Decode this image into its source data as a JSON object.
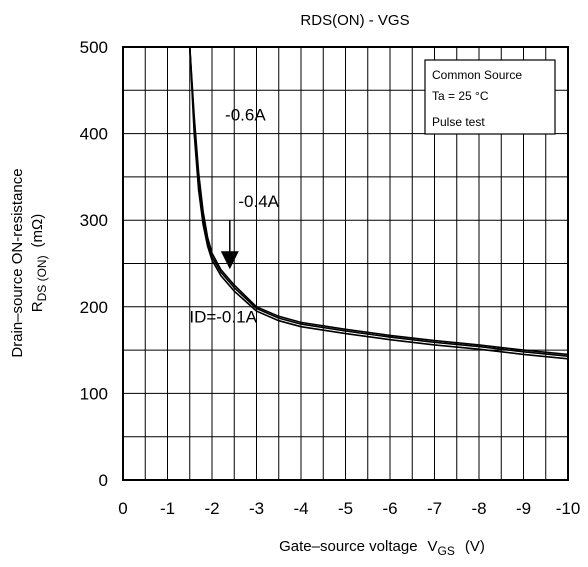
{
  "chart_data": {
    "type": "line",
    "title": "RDS(ON) - VGS",
    "xlabel": {
      "main": "Gate–source voltage",
      "symbol": "V",
      "sub": "GS",
      "unit": "(V)"
    },
    "ylabel": {
      "line1": "Drain–source ON-resistance",
      "symbol": "R",
      "sub": "DS (ON)",
      "unit": "(mΩ)"
    },
    "xlim": [
      0,
      -10
    ],
    "ylim": [
      0,
      500
    ],
    "x_ticks": [
      "0",
      "-1",
      "-2",
      "-3",
      "-4",
      "-5",
      "-6",
      "-7",
      "-8",
      "-9",
      "-10"
    ],
    "y_ticks": [
      "0",
      "100",
      "200",
      "300",
      "400",
      "500"
    ],
    "grid": true,
    "legend_box": {
      "line1": "Common Source",
      "line2": "Ta = 25 °C",
      "line3": "Pulse test"
    },
    "series": [
      {
        "name": "-0.6A",
        "x": [
          -1.5,
          -1.6,
          -1.7,
          -1.8,
          -1.9,
          -2.0,
          -2.2,
          -2.5,
          -3.0,
          -3.5,
          -4.0,
          -5.0,
          -6.0,
          -7.0,
          -8.0,
          -9.0,
          -10.0
        ],
        "y": [
          500,
          420,
          355,
          310,
          280,
          262,
          243,
          225,
          200,
          189,
          182,
          174,
          167,
          161,
          156,
          150,
          145
        ]
      },
      {
        "name": "-0.4A",
        "x": [
          -1.5,
          -1.6,
          -1.7,
          -1.8,
          -1.9,
          -2.0,
          -2.2,
          -2.5,
          -3.0,
          -3.5,
          -4.0,
          -5.0,
          -6.0,
          -7.0,
          -8.0,
          -9.0,
          -10.0
        ],
        "y": [
          500,
          410,
          345,
          302,
          275,
          258,
          240,
          222,
          198,
          187,
          180,
          172,
          165,
          159,
          154,
          148,
          143
        ]
      },
      {
        "name": "ID=-0.1A",
        "x": [
          -1.5,
          -1.6,
          -1.7,
          -1.8,
          -1.9,
          -2.0,
          -2.2,
          -2.5,
          -3.0,
          -3.5,
          -4.0,
          -5.0,
          -6.0,
          -7.0,
          -8.0,
          -9.0,
          -10.0
        ],
        "y": [
          500,
          400,
          335,
          295,
          270,
          254,
          236,
          218,
          195,
          184,
          177,
          169,
          162,
          156,
          151,
          145,
          140
        ]
      }
    ],
    "annotations": [
      {
        "text": "-0.6A",
        "x": -2.75,
        "y": 415
      },
      {
        "text": "-0.4A",
        "x": -3.05,
        "y": 315
      },
      {
        "text": "ID=-0.1A",
        "x": -2.25,
        "y": 182
      }
    ],
    "arrow": {
      "x": -2.4,
      "y_from": 300,
      "y_to": 248
    }
  }
}
